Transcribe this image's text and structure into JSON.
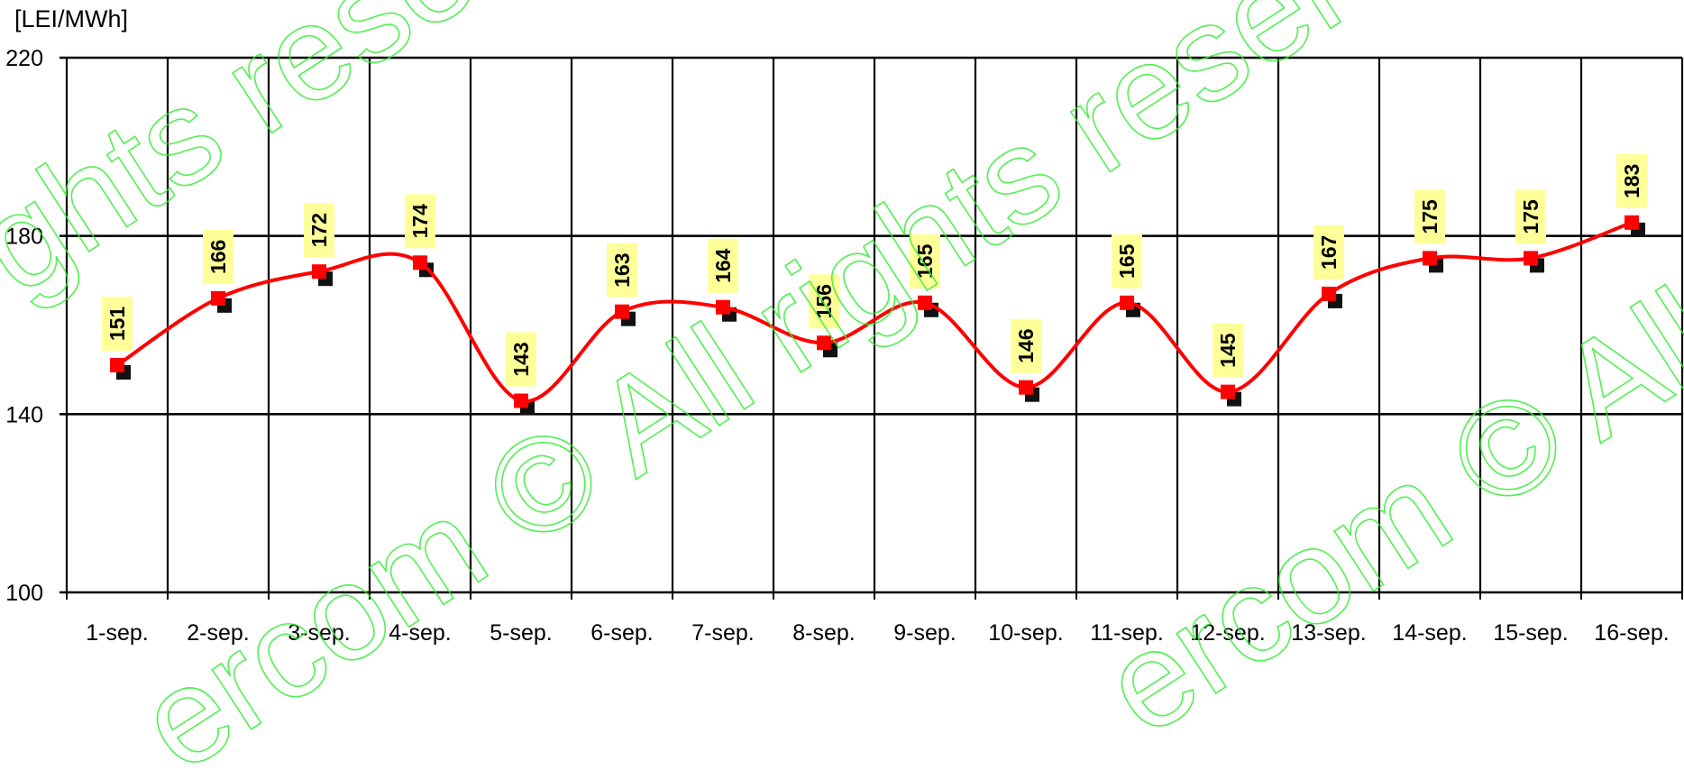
{
  "chart_data": {
    "type": "line",
    "title": "",
    "xlabel": "",
    "ylabel": "[LEI/MWh]",
    "x": [
      "1-sep.",
      "2-sep.",
      "3-sep.",
      "4-sep.",
      "5-sep.",
      "6-sep.",
      "7-sep.",
      "8-sep.",
      "9-sep.",
      "10-sep.",
      "11-sep.",
      "12-sep.",
      "13-sep.",
      "14-sep.",
      "15-sep.",
      "16-sep."
    ],
    "series": [
      {
        "values": [
          151,
          166,
          172,
          174,
          143,
          163,
          164,
          156,
          165,
          146,
          165,
          145,
          167,
          175,
          175,
          183
        ],
        "color": "#ff0000",
        "marker": "square",
        "smooth": true
      }
    ],
    "data_labels": [
      "151",
      "166",
      "172",
      "174",
      "143",
      "163",
      "164",
      "156",
      "165",
      "146",
      "165",
      "145",
      "167",
      "175",
      "175",
      "183"
    ],
    "ylim": [
      100,
      220
    ],
    "yticks": [
      100,
      140,
      180,
      220
    ],
    "grid": true,
    "legend": "none",
    "label_background": "#ffff99",
    "watermark": [
      "ghts reserv",
      "ercom © All rights reserv",
      "ercom © All"
    ]
  }
}
